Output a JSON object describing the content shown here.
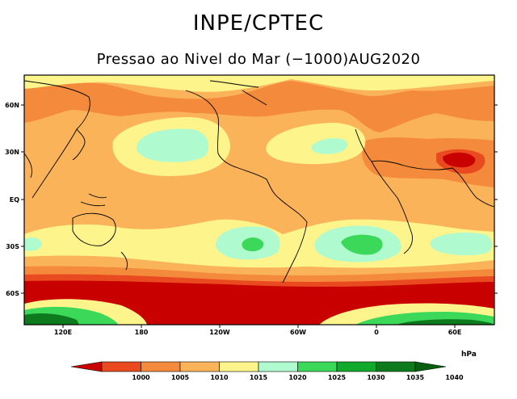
{
  "header": {
    "title": "INPE/CPTEC",
    "subtitle": "Pressao ao Nivel do Mar (−1000)AUG2020"
  },
  "axes": {
    "lat_labels": [
      "60N",
      "30N",
      "EQ",
      "30S",
      "60S"
    ],
    "lon_labels": [
      "120E",
      "180",
      "120W",
      "60W",
      "0",
      "60E"
    ]
  },
  "legend": {
    "units": "hPa",
    "levels": [
      "1000",
      "1005",
      "1010",
      "1015",
      "1020",
      "1025",
      "1030",
      "1035",
      "1040"
    ],
    "colors": [
      "#c80000",
      "#ea4a1f",
      "#f48a3c",
      "#fbb35a",
      "#fdf58c",
      "#b0fad0",
      "#3cd85a",
      "#12aa2c",
      "#0e7a1e",
      "#066010"
    ]
  }
}
